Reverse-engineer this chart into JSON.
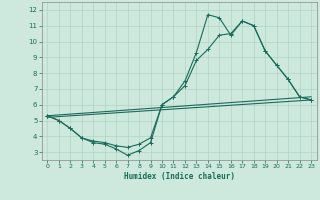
{
  "xlabel": "Humidex (Indice chaleur)",
  "ylabel": "",
  "xlim": [
    -0.5,
    23.5
  ],
  "ylim": [
    2.5,
    12.5
  ],
  "xticks": [
    0,
    1,
    2,
    3,
    4,
    5,
    6,
    7,
    8,
    9,
    10,
    11,
    12,
    13,
    14,
    15,
    16,
    17,
    18,
    19,
    20,
    21,
    22,
    23
  ],
  "yticks": [
    3,
    4,
    5,
    6,
    7,
    8,
    9,
    10,
    11,
    12
  ],
  "bg_color": "#cde8dc",
  "line_color": "#1a6b5a",
  "grid_color": "#b0d4c4",
  "lines": [
    {
      "x": [
        0,
        1,
        2,
        3,
        4,
        5,
        6,
        7,
        8,
        9,
        10,
        11,
        12,
        13,
        14,
        15,
        16,
        17,
        18,
        19,
        20,
        21,
        22,
        23
      ],
      "y": [
        5.3,
        5.0,
        4.5,
        3.9,
        3.6,
        3.5,
        3.2,
        2.8,
        3.1,
        3.6,
        6.0,
        6.5,
        7.5,
        9.3,
        11.7,
        11.5,
        10.4,
        11.3,
        11.0,
        9.4,
        8.5,
        7.6,
        6.5,
        6.3
      ]
    },
    {
      "x": [
        0,
        1,
        2,
        3,
        4,
        5,
        6,
        7,
        8,
        9,
        10,
        11,
        12,
        13,
        14,
        15,
        16,
        17,
        18,
        19,
        20,
        21,
        22,
        23
      ],
      "y": [
        5.3,
        5.0,
        4.5,
        3.9,
        3.7,
        3.6,
        3.4,
        3.3,
        3.5,
        3.9,
        6.0,
        6.5,
        7.2,
        8.8,
        9.5,
        10.4,
        10.5,
        11.3,
        11.0,
        9.4,
        8.5,
        7.6,
        6.5,
        6.3
      ]
    },
    {
      "x": [
        0,
        23
      ],
      "y": [
        5.2,
        6.3
      ]
    },
    {
      "x": [
        0,
        23
      ],
      "y": [
        5.3,
        6.5
      ]
    }
  ]
}
